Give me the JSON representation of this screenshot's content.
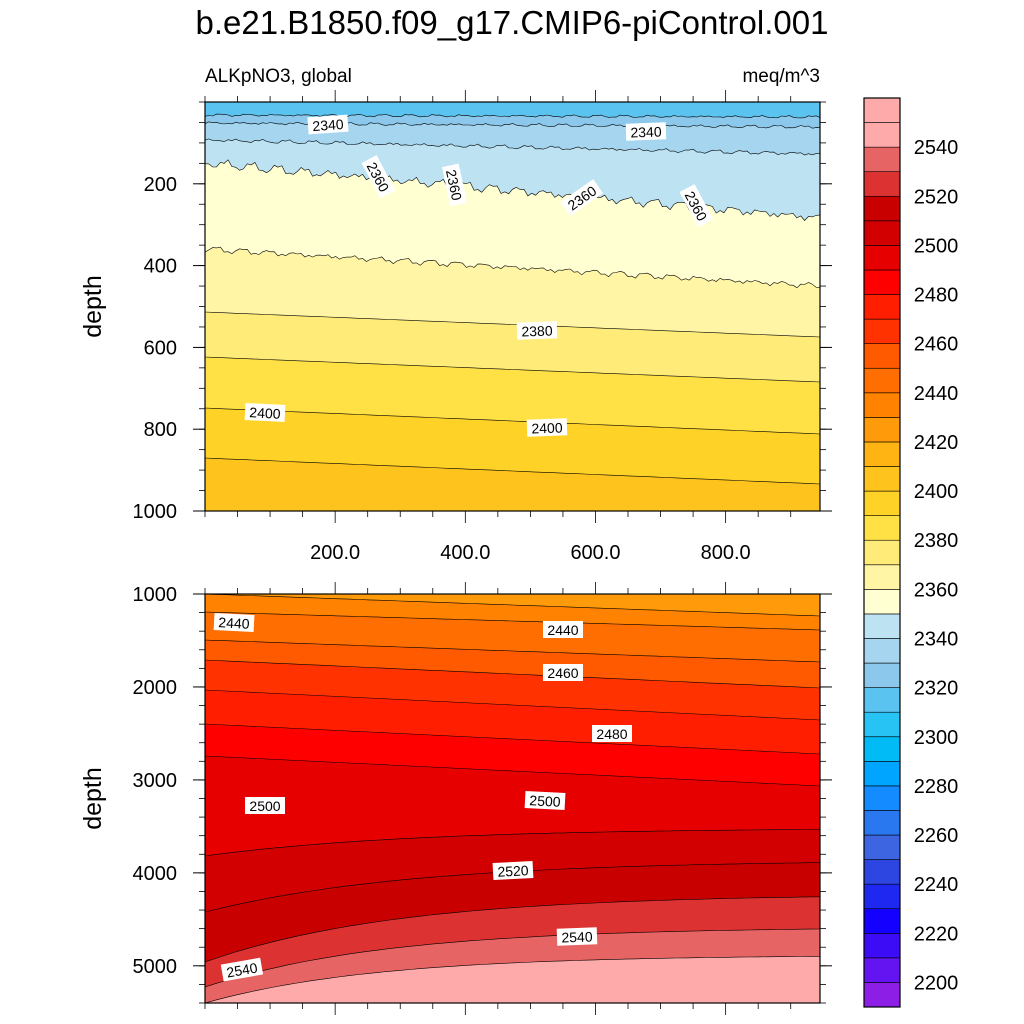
{
  "chart_data": {
    "type": "contour",
    "title": "b.e21.B1850.f09_g17.CMIP6-piControl.001",
    "variable_label": "ALKpNO3, global",
    "units_label": "meq/m^3",
    "xlim": [
      0,
      945
    ],
    "panels": [
      {
        "name": "upper",
        "ylabel": "depth",
        "ylim": [
          0,
          1000
        ],
        "yticks": [
          "200",
          "400",
          "600",
          "800",
          "1000"
        ],
        "xticks": [
          "200.0",
          "400.0",
          "600.0",
          "800.0"
        ],
        "contour_labels": [
          "2340",
          "2340",
          "2360",
          "2360",
          "2360",
          "2360",
          "2380",
          "2400",
          "2400"
        ]
      },
      {
        "name": "lower",
        "ylabel": "depth",
        "ylim": [
          1000,
          5400
        ],
        "yticks": [
          "1000",
          "2000",
          "3000",
          "4000",
          "5000"
        ],
        "xticks": [],
        "contour_labels": [
          "2440",
          "2440",
          "2460",
          "2480",
          "2500",
          "2500",
          "2520",
          "2540",
          "2540"
        ]
      }
    ],
    "colorbar": {
      "min": 2190,
      "max": 2560,
      "interval": 10,
      "tick_labels": [
        "2540",
        "2520",
        "2500",
        "2480",
        "2460",
        "2440",
        "2420",
        "2400",
        "2380",
        "2360",
        "2340",
        "2320",
        "2300",
        "2280",
        "2260",
        "2240",
        "2220",
        "2200"
      ]
    }
  }
}
